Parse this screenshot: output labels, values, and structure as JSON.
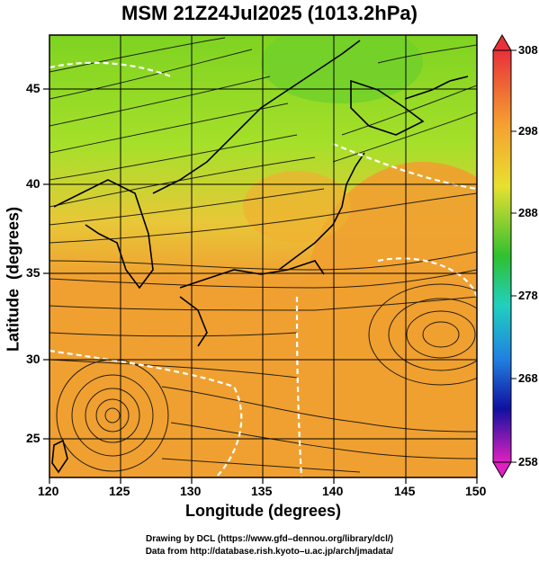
{
  "title": "MSM 21Z24Jul2025 (1013.2hPa)",
  "x_axis": {
    "label": "Longitude (degrees)",
    "ticks": [
      "120",
      "125",
      "130",
      "135",
      "140",
      "145",
      "150"
    ]
  },
  "y_axis": {
    "label": "Latitude  (degrees)",
    "ticks": [
      "25",
      "30",
      "35",
      "40",
      "45"
    ]
  },
  "colorbar": {
    "ticks": [
      "308",
      "298",
      "288",
      "278",
      "268",
      "258"
    ]
  },
  "credits": [
    "Drawing by DCL (https://www.gfd–dennou.org/library/dcl/)",
    "Data from http://database.rish.kyoto–u.ac.jp/arch/jmadata/"
  ]
}
